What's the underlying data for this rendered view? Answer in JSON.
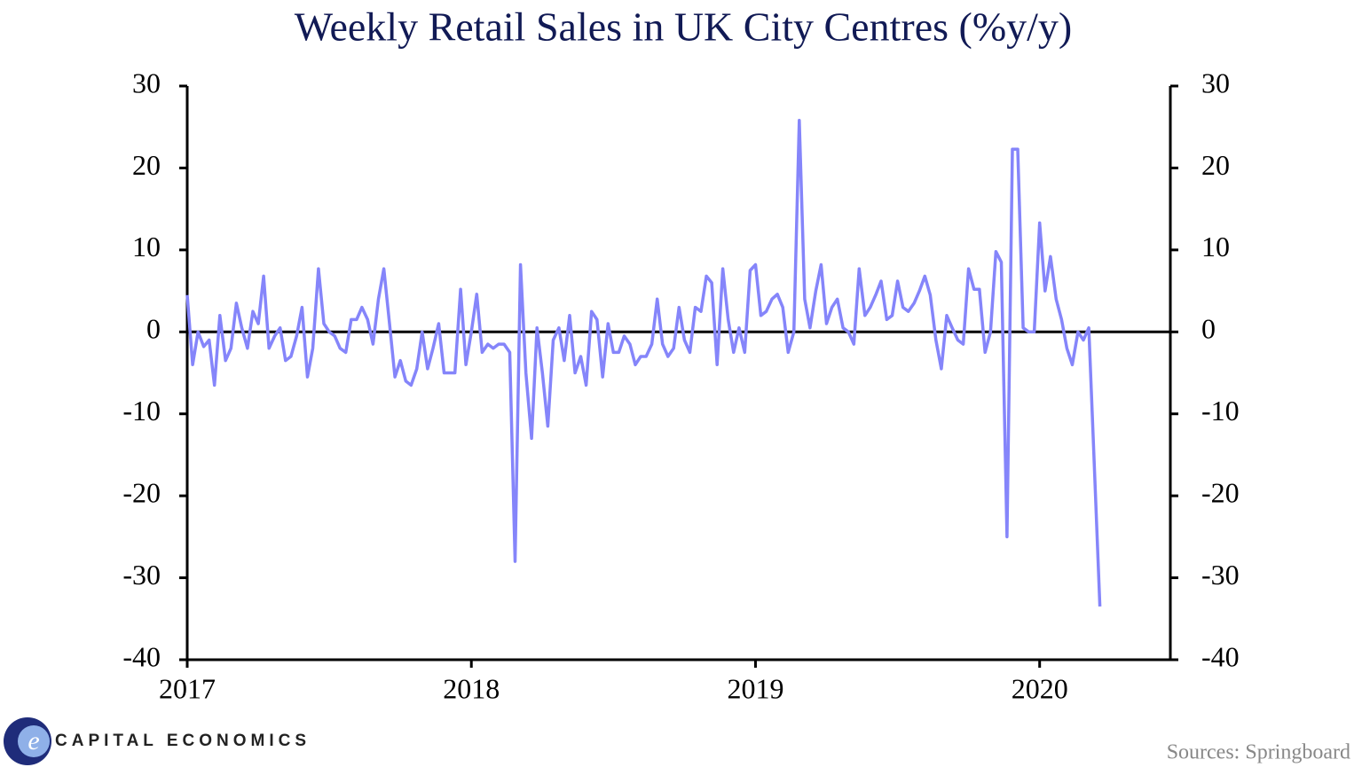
{
  "chart_data": {
    "type": "line",
    "title": "Weekly Retail Sales in UK City Centres (%y/y)",
    "source": "Sources: Springboard",
    "logo": "CAPITAL ECONOMICS",
    "color": "#8585fa",
    "zero_line": true,
    "xlim": [
      2017,
      2020.46
    ],
    "xticks": [
      2017,
      2018,
      2019,
      2020
    ],
    "ylim": [
      -40,
      30
    ],
    "yticks": [
      -40,
      -30,
      -20,
      -10,
      0,
      10,
      20,
      30
    ],
    "y2lim": [
      -40,
      30
    ],
    "y2ticks": [
      -40,
      -30,
      -20,
      -10,
      0,
      10,
      20,
      30
    ],
    "x": [
      2017,
      2017.019,
      2017.038,
      2017.058,
      2017.077,
      2017.096,
      2017.115,
      2017.135,
      2017.154,
      2017.173,
      2017.192,
      2017.212,
      2017.231,
      2017.25,
      2017.269,
      2017.288,
      2017.308,
      2017.327,
      2017.346,
      2017.365,
      2017.385,
      2017.404,
      2017.423,
      2017.442,
      2017.462,
      2017.481,
      2017.5,
      2017.519,
      2017.538,
      2017.558,
      2017.577,
      2017.596,
      2017.615,
      2017.635,
      2017.654,
      2017.673,
      2017.692,
      2017.712,
      2017.731,
      2017.75,
      2017.769,
      2017.788,
      2017.808,
      2017.827,
      2017.846,
      2017.865,
      2017.885,
      2017.904,
      2017.923,
      2017.942,
      2017.962,
      2017.981,
      2018,
      2018.019,
      2018.038,
      2018.058,
      2018.077,
      2018.096,
      2018.115,
      2018.135,
      2018.154,
      2018.173,
      2018.192,
      2018.212,
      2018.231,
      2018.25,
      2018.269,
      2018.288,
      2018.308,
      2018.327,
      2018.346,
      2018.365,
      2018.385,
      2018.404,
      2018.423,
      2018.442,
      2018.462,
      2018.481,
      2018.5,
      2018.519,
      2018.538,
      2018.558,
      2018.577,
      2018.596,
      2018.615,
      2018.635,
      2018.654,
      2018.673,
      2018.692,
      2018.712,
      2018.731,
      2018.75,
      2018.769,
      2018.788,
      2018.808,
      2018.827,
      2018.846,
      2018.865,
      2018.885,
      2018.904,
      2018.923,
      2018.942,
      2018.962,
      2018.981,
      2019,
      2019.019,
      2019.038,
      2019.058,
      2019.077,
      2019.096,
      2019.115,
      2019.135,
      2019.154,
      2019.173,
      2019.192,
      2019.212,
      2019.231,
      2019.25,
      2019.269,
      2019.288,
      2019.308,
      2019.327,
      2019.346,
      2019.365,
      2019.385,
      2019.404,
      2019.423,
      2019.442,
      2019.462,
      2019.481,
      2019.5,
      2019.519,
      2019.538,
      2019.558,
      2019.577,
      2019.596,
      2019.615,
      2019.635,
      2019.654,
      2019.673,
      2019.692,
      2019.712,
      2019.731,
      2019.75,
      2019.769,
      2019.788,
      2019.808,
      2019.827,
      2019.846,
      2019.865,
      2019.885,
      2019.904,
      2019.923,
      2019.942,
      2019.962,
      2019.981,
      2020,
      2020.019,
      2020.038,
      2020.058,
      2020.077,
      2020.096,
      2020.115,
      2020.135,
      2020.154,
      2020.173,
      2020.192,
      2020.212
    ],
    "values": [
      4.5,
      -4,
      0,
      -1.8,
      -1,
      -6.5,
      2,
      -3.5,
      -2,
      3.5,
      0.5,
      -2,
      2.5,
      1,
      6.8,
      -2,
      -0.5,
      0.5,
      -3.5,
      -3,
      -0.5,
      3,
      -5.5,
      -2,
      7.7,
      1,
      0,
      -0.5,
      -2,
      -2.5,
      1.5,
      1.5,
      3,
      1.5,
      -1.5,
      4,
      7.7,
      1,
      -5.5,
      -3.5,
      -6,
      -6.5,
      -4.5,
      0,
      -4.5,
      -2,
      1,
      -5,
      -5,
      -5,
      5.2,
      -4,
      0,
      4.6,
      -2.5,
      -1.5,
      -2,
      -1.5,
      -1.5,
      -2.5,
      -28,
      8.2,
      -5,
      -13,
      0.5,
      -5,
      -11.5,
      -1,
      0.5,
      -3.5,
      2,
      -5,
      -3,
      -6.5,
      2.5,
      1.5,
      -5.5,
      1,
      -2.5,
      -2.5,
      -0.5,
      -1.5,
      -4,
      -3,
      -3,
      -1.5,
      4,
      -1.5,
      -3,
      -2,
      3,
      -1,
      -2.5,
      3,
      2.5,
      6.8,
      6,
      -4,
      7.7,
      1.5,
      -2.5,
      0.5,
      -2.5,
      7.5,
      8.2,
      2,
      2.5,
      4,
      4.6,
      3,
      -2.5,
      0,
      25.8,
      4,
      0.5,
      5,
      8.2,
      1,
      3,
      4,
      0.5,
      0,
      -1.5,
      7.7,
      2,
      3,
      4.5,
      6.2,
      1.5,
      2,
      6.2,
      3,
      2.5,
      3.5,
      5,
      6.8,
      4.5,
      -1,
      -4.5,
      2,
      0.5,
      -1,
      -1.5,
      7.7,
      5.2,
      5.2,
      -2.5,
      0,
      9.8,
      8.5,
      -25,
      22.3,
      22.3,
      0.5,
      0,
      0,
      13.3,
      5,
      9.2,
      4,
      1.5,
      -2,
      -4,
      0,
      -1,
      0.5,
      -16,
      -33.5
    ]
  }
}
